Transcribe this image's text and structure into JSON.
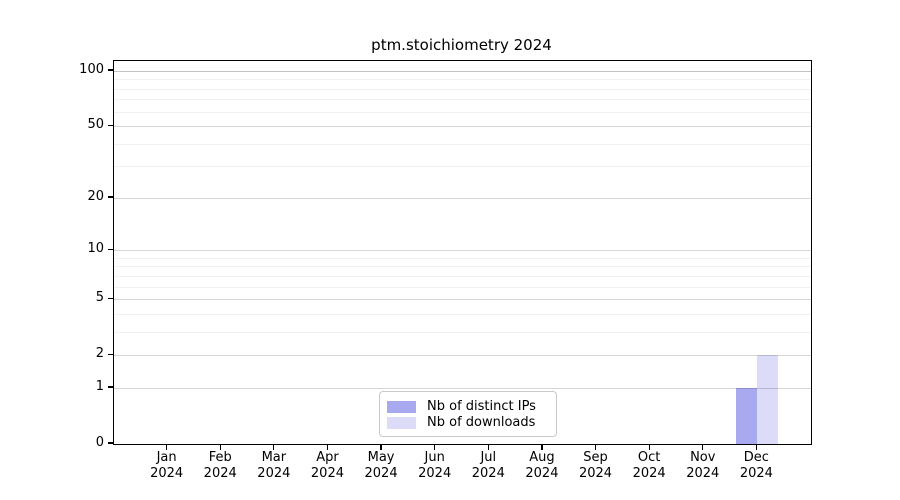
{
  "chart_data": {
    "type": "bar",
    "title": "ptm.stoichiometry 2024",
    "months": [
      "Jan",
      "Feb",
      "Mar",
      "Apr",
      "May",
      "Jun",
      "Jul",
      "Aug",
      "Sep",
      "Oct",
      "Nov",
      "Dec"
    ],
    "year_label": "2024",
    "series": [
      {
        "name": "Nb of distinct IPs",
        "color": "#a9a9f0",
        "values": [
          0,
          0,
          0,
          0,
          0,
          0,
          0,
          0,
          0,
          0,
          0,
          1
        ]
      },
      {
        "name": "Nb of downloads",
        "color": "#dcdcf8",
        "values": [
          0,
          0,
          0,
          0,
          0,
          0,
          0,
          0,
          0,
          0,
          0,
          2
        ]
      }
    ],
    "y_scale": "log1p",
    "y_ticks": [
      0,
      1,
      2,
      5,
      10,
      20,
      50,
      100
    ],
    "y_minor_gridlines": [
      3,
      4,
      6,
      7,
      8,
      9,
      30,
      40,
      60,
      70,
      80,
      90
    ],
    "ylim": [
      0,
      113
    ],
    "grid": true,
    "legend_position": "bottom-center-inside"
  },
  "colors": {
    "bar_ips": "#a9a9f0",
    "bar_downloads": "#dcdcf8",
    "major_grid_rgba": "rgba(0,0,0,0.16)",
    "minor_grid_rgba": "rgba(0,0,0,0.055)",
    "top_grid_rgba": "rgba(0,0,0,0.24)",
    "spine": "#000000",
    "legend_border": "#c9c9c9"
  }
}
